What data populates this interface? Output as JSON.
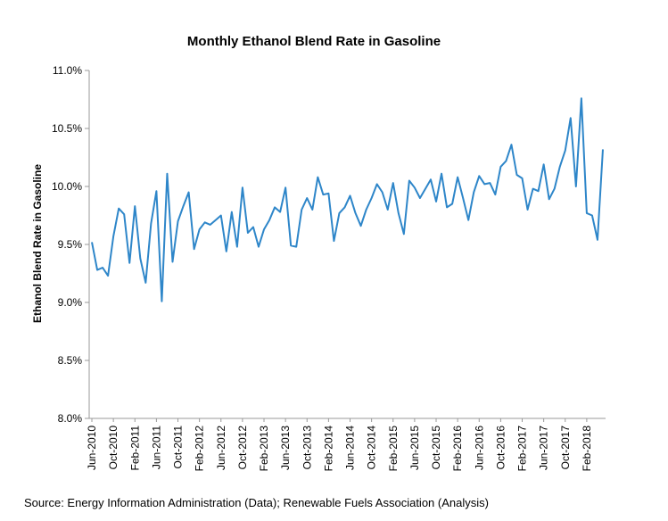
{
  "colors": {
    "line": "#2e86c9",
    "axis": "#999999"
  },
  "chart_data": {
    "type": "line",
    "title": "Monthly Ethanol Blend Rate in Gasoline",
    "xlabel": "",
    "ylabel": "Ethanol Blend Rate in Gasoline",
    "ylim": [
      0.08,
      0.11
    ],
    "yticks": [
      "8.0%",
      "8.5%",
      "9.0%",
      "9.5%",
      "10.0%",
      "10.5%",
      "11.0%"
    ],
    "grid": false,
    "legend": "none",
    "x_tick_labels": [
      "Jun-2010",
      "Oct-2010",
      "Feb-2011",
      "Jun-2011",
      "Oct-2011",
      "Feb-2012",
      "Jun-2012",
      "Oct-2012",
      "Feb-2013",
      "Jun-2013",
      "Oct-2013",
      "Feb-2014",
      "Jun-2014",
      "Oct-2014",
      "Feb-2015",
      "Jun-2015",
      "Oct-2015",
      "Feb-2016",
      "Jun-2016",
      "Oct-2016",
      "Feb-2017",
      "Jun-2017",
      "Oct-2017",
      "Feb-2018"
    ],
    "series": [
      {
        "start": "Jun-2010",
        "end": "Jun-2018",
        "values": [
          0.0952,
          0.0928,
          0.093,
          0.0923,
          0.0957,
          0.0981,
          0.0976,
          0.0934,
          0.0983,
          0.0938,
          0.0917,
          0.0968,
          0.0996,
          0.0901,
          0.1011,
          0.0935,
          0.097,
          0.0983,
          0.0995,
          0.0946,
          0.0963,
          0.0969,
          0.0967,
          0.0971,
          0.0975,
          0.0944,
          0.0978,
          0.0948,
          0.0999,
          0.096,
          0.0965,
          0.0948,
          0.0963,
          0.0971,
          0.0982,
          0.0978,
          0.0999,
          0.0949,
          0.0948,
          0.098,
          0.099,
          0.098,
          0.1008,
          0.0993,
          0.0994,
          0.0953,
          0.0977,
          0.0982,
          0.0992,
          0.0977,
          0.0966,
          0.098,
          0.099,
          0.1002,
          0.0995,
          0.098,
          0.1003,
          0.0977,
          0.0959,
          0.1005,
          0.0999,
          0.099,
          0.0998,
          0.1006,
          0.0987,
          0.1011,
          0.0982,
          0.0985,
          0.1008,
          0.099,
          0.0971,
          0.0995,
          0.1009,
          0.1002,
          0.1003,
          0.0993,
          0.1017,
          0.1022,
          0.1036,
          0.101,
          0.1007,
          0.098,
          0.0998,
          0.0996,
          0.1019,
          0.0989,
          0.0998,
          0.1017,
          0.1031,
          0.1059,
          0.1,
          0.1076,
          0.0977,
          0.0975,
          0.0954,
          0.1032
        ]
      }
    ]
  },
  "source": "Source: Energy Information Administration (Data); Renewable Fuels Association (Analysis)"
}
